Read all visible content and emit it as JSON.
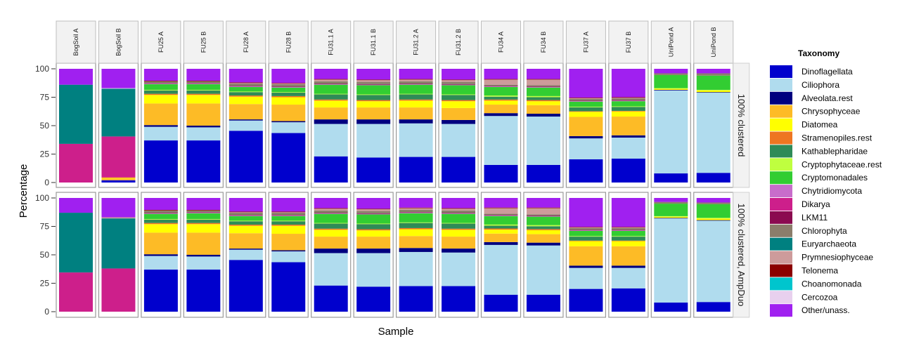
{
  "chart_data": {
    "type": "bar",
    "stacked": true,
    "normalized": true,
    "title": "",
    "xlabel": "Sample",
    "ylabel": "Percentage",
    "ylim": [
      0,
      100
    ],
    "yticks": [
      0,
      25,
      50,
      75,
      100
    ],
    "grid": false,
    "legend_title": "Taxonomy",
    "legend_position": "right",
    "categories": [
      "BogSoil A",
      "BogSoil B",
      "FU25 A",
      "FU25 B",
      "FU28 A",
      "FU28 B",
      "FU31.1 A",
      "FU31.1 B",
      "FU31.2 A",
      "FU31.2 B",
      "FU34 A",
      "FU34 B",
      "FU37 A",
      "FU37 B",
      "UniPond A",
      "UniPond B"
    ],
    "taxa": [
      {
        "name": "Dinoflagellata",
        "color": "#0000CD"
      },
      {
        "name": "Ciliophora",
        "color": "#B0DCEE"
      },
      {
        "name": "Alveolata.rest",
        "color": "#00007F"
      },
      {
        "name": "Chrysophyceae",
        "color": "#FDBB26"
      },
      {
        "name": "Diatomea",
        "color": "#FFFF00"
      },
      {
        "name": "Stramenopiles.rest",
        "color": "#EE7621"
      },
      {
        "name": "Kathablepharidae",
        "color": "#2E8B57"
      },
      {
        "name": "Cryptophytaceae.rest",
        "color": "#BFFF3F"
      },
      {
        "name": "Cryptomonadales",
        "color": "#32CD32"
      },
      {
        "name": "Chytridiomycota",
        "color": "#C86DCB"
      },
      {
        "name": "Dikarya",
        "color": "#CD1F8B"
      },
      {
        "name": "LKM11",
        "color": "#8B0A50"
      },
      {
        "name": "Chlorophyta",
        "color": "#8B7D6B"
      },
      {
        "name": "Euryarchaeota",
        "color": "#008080"
      },
      {
        "name": "Prymnesiophyceae",
        "color": "#CD9B9B"
      },
      {
        "name": "Telonema",
        "color": "#8B0000"
      },
      {
        "name": "Choanomonada",
        "color": "#00C5CD"
      },
      {
        "name": "Cercozoa",
        "color": "#E8D0EE"
      },
      {
        "name": "Other/unass.",
        "color": "#A020F0"
      }
    ],
    "facets": [
      {
        "label": "100% clustered",
        "values": {
          "BogSoil A": [
            0,
            0,
            0,
            0,
            0,
            0,
            0,
            0,
            0,
            0,
            34,
            0,
            0,
            52,
            0,
            0,
            0,
            0,
            14
          ],
          "BogSoil B": [
            2,
            0,
            0,
            1.5,
            0.5,
            0.5,
            0,
            0,
            0,
            0,
            36,
            0,
            0,
            42,
            0,
            0,
            0,
            0.5,
            17
          ],
          "FU25 A": [
            37,
            12,
            1.5,
            19,
            7.5,
            1,
            3,
            0.5,
            5,
            0.5,
            0,
            0.5,
            1.5,
            0,
            0,
            0.5,
            0,
            0,
            10.5
          ],
          "FU25 B": [
            37,
            11.5,
            1.5,
            19.5,
            7.5,
            1,
            3,
            0.5,
            5,
            0.5,
            0,
            0.5,
            1.5,
            0,
            0,
            0.5,
            0,
            0,
            10.5
          ],
          "FU28 A": [
            45.5,
            9,
            1,
            13.5,
            6.5,
            1,
            3,
            0.5,
            4,
            0.5,
            0,
            0.5,
            2,
            0,
            0.5,
            0.5,
            0,
            0,
            12
          ],
          "FU28 B": [
            43.5,
            9.5,
            1,
            14.5,
            6.5,
            1,
            3,
            0.5,
            4,
            0.5,
            0,
            0.5,
            2,
            0,
            0.5,
            0.5,
            0,
            0,
            12.5
          ],
          "FU31.1 A": [
            23,
            28.5,
            4,
            10.5,
            6,
            1,
            4.5,
            0.5,
            8,
            0.5,
            0,
            0.5,
            2,
            0,
            1.5,
            0.5,
            0,
            0,
            9
          ],
          "FU31.1 B": [
            22,
            29.5,
            4,
            10.5,
            5.5,
            1,
            4.5,
            0.5,
            8,
            0.5,
            0,
            0.5,
            2,
            0,
            1.5,
            0.5,
            0,
            0,
            9.5
          ],
          "FU31.2 A": [
            22.5,
            29.5,
            3.5,
            10.5,
            6,
            1,
            4.5,
            0.5,
            8,
            0.5,
            0,
            0.5,
            2,
            0,
            1.5,
            0.5,
            0,
            0,
            9
          ],
          "FU31.2 B": [
            22.5,
            29,
            3.5,
            10.5,
            6,
            1,
            4.5,
            0.5,
            8,
            0.5,
            0,
            0.5,
            2,
            0,
            1.5,
            0.5,
            0,
            0,
            9.5
          ],
          "FU34 A": [
            15.5,
            43,
            2.5,
            7.5,
            3.5,
            1,
            2.5,
            1,
            7.5,
            0.5,
            0,
            0.5,
            1,
            0,
            4.5,
            0.5,
            0,
            0,
            9
          ],
          "FU34 B": [
            15.5,
            42.5,
            2.5,
            7.5,
            3.5,
            1,
            2.5,
            1,
            7.5,
            0.5,
            0,
            0.5,
            1,
            0,
            5,
            0.5,
            0,
            0,
            9
          ],
          "FU37 A": [
            20.5,
            18.5,
            2,
            17,
            4.5,
            0.5,
            3.5,
            0.5,
            4.5,
            0.5,
            0,
            0.5,
            1.5,
            0,
            0.5,
            0.5,
            0,
            0,
            25.5
          ],
          "FU37 B": [
            21,
            18.5,
            2,
            16.5,
            4.5,
            0.5,
            3.5,
            0.5,
            4.5,
            0.5,
            0,
            0.5,
            1.5,
            0,
            0.5,
            0.5,
            0,
            0,
            25
          ],
          "UniPond A": [
            8,
            73,
            0.5,
            0,
            1,
            0,
            0,
            0.5,
            11.5,
            0,
            0,
            0,
            1.5,
            0,
            0,
            0,
            0,
            0,
            4
          ],
          "UniPond B": [
            8.5,
            70.5,
            0.5,
            0,
            1.5,
            0,
            0,
            0.5,
            12.5,
            0,
            0,
            0,
            2,
            0,
            0,
            0,
            0,
            0,
            4
          ]
        }
      },
      {
        "label": "100% clustered, AmpDuo",
        "values": {
          "BogSoil A": [
            0,
            0,
            0,
            0,
            0,
            0,
            0,
            0,
            0,
            0,
            34.5,
            0,
            0,
            52.5,
            0,
            0,
            0,
            0,
            13
          ],
          "BogSoil B": [
            0,
            0,
            0,
            0,
            0,
            0,
            0,
            0,
            0,
            0,
            38,
            0,
            0,
            44,
            1,
            0,
            0,
            0,
            17
          ],
          "FU25 A": [
            37,
            12,
            1.5,
            19,
            7.5,
            1,
            3,
            0.5,
            4.5,
            0.5,
            0,
            0.5,
            2,
            0,
            0,
            0.5,
            0,
            0,
            10.5
          ],
          "FU25 B": [
            37,
            11.5,
            1.5,
            19.5,
            7.5,
            1,
            3,
            0.5,
            5,
            0.5,
            0,
            0.5,
            1.5,
            0,
            0,
            0.5,
            0,
            0,
            10.5
          ],
          "FU28 A": [
            45.5,
            9,
            1,
            13.5,
            6.5,
            1,
            3,
            0.5,
            4,
            0.5,
            0,
            0.5,
            2,
            0,
            0.5,
            0.5,
            0,
            0,
            12
          ],
          "FU28 B": [
            43.5,
            9.5,
            1,
            14.5,
            7,
            1,
            3,
            0.5,
            4,
            0.5,
            0,
            0.5,
            2,
            0,
            0.5,
            0.5,
            0,
            0,
            12
          ],
          "FU31.1 A": [
            23,
            28.5,
            4,
            10.5,
            6,
            1,
            4.5,
            0.5,
            8,
            0.5,
            0,
            0.5,
            2,
            0,
            1.5,
            0.5,
            0,
            0,
            9
          ],
          "FU31.1 B": [
            22,
            29.5,
            4,
            10.5,
            5.5,
            1,
            4.5,
            0.5,
            8,
            0.5,
            0,
            0.5,
            2,
            0,
            1.5,
            0.5,
            0,
            0,
            9.5
          ],
          "FU31.2 A": [
            22.5,
            30,
            3.5,
            10.5,
            6,
            1,
            4.5,
            0.5,
            8,
            0.5,
            0,
            0.5,
            2,
            0,
            1.5,
            0.5,
            0,
            0,
            8.5
          ],
          "FU31.2 B": [
            22.5,
            29.5,
            3.5,
            10.5,
            6,
            1,
            4.5,
            0.5,
            8,
            0.5,
            0,
            0.5,
            2,
            0,
            1.5,
            0.5,
            0,
            0,
            9
          ],
          "FU34 A": [
            15,
            44,
            2.5,
            7.5,
            3.5,
            1,
            2.5,
            1,
            7.5,
            0.5,
            0,
            0.5,
            1,
            0,
            5,
            0.5,
            0,
            0,
            8.5
          ],
          "FU34 B": [
            15,
            43.5,
            2.5,
            7.5,
            3.5,
            1,
            2.5,
            1,
            7.5,
            0.5,
            0,
            0.5,
            1,
            0,
            5.5,
            0.5,
            0,
            0,
            8.5
          ],
          "FU37 A": [
            20,
            18.5,
            2,
            17,
            4.5,
            0.5,
            3.5,
            0.5,
            4.5,
            0.5,
            0,
            0.5,
            1.5,
            0,
            0.5,
            0.5,
            0,
            0,
            25.5
          ],
          "FU37 B": [
            20.5,
            18,
            2,
            17,
            4.5,
            0.5,
            3.5,
            0.5,
            4.5,
            0.5,
            0,
            0.5,
            1.5,
            0,
            0.5,
            0.5,
            0,
            0,
            25.5
          ],
          "UniPond A": [
            8,
            74,
            0.5,
            0,
            1,
            0,
            0,
            0.5,
            11,
            0,
            0,
            0,
            1.5,
            0,
            0,
            0,
            0,
            0,
            3.5
          ],
          "UniPond B": [
            8.5,
            71.5,
            0.5,
            0,
            1.5,
            0,
            0,
            0.5,
            12,
            0,
            0,
            0,
            1.5,
            0,
            0,
            0,
            0,
            0,
            4
          ]
        }
      }
    ]
  }
}
